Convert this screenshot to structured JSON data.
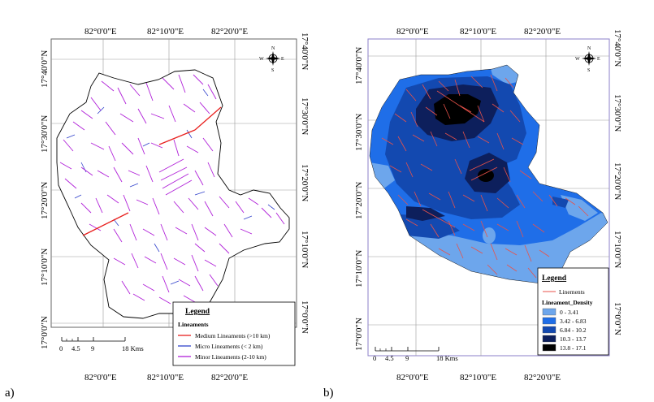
{
  "panels": {
    "a": {
      "letter": "a)",
      "top_lon_labels": [
        "82°0'0\"E",
        "82°10'0\"E",
        "82°20'0\"E"
      ],
      "bottom_lon_labels": [
        "82°0'0\"E",
        "82°10'0\"E",
        "82°20'0\"E"
      ],
      "left_lat_labels": [
        "17°40'0\"N",
        "17°30'0\"N",
        "17°20'0\"N",
        "17°10'0\"N",
        "17°0'0\"N"
      ],
      "right_lat_labels": [
        "17°40'0\"N",
        "17°30'0\"N",
        "17°20'0\"N",
        "17°10'0\"N",
        "17°0'0\"N"
      ],
      "scale": {
        "ticks": [
          "0",
          "4.5",
          "9",
          "18 Kms"
        ]
      },
      "legend": {
        "title": "Legend",
        "subtitle": "Lineaments",
        "items": [
          {
            "label": "Medium Lineaments (>10 km)",
            "color": "#e8201e"
          },
          {
            "label": "Micro Lineaments (< 2 km)",
            "color": "#3344cc"
          },
          {
            "label": "Minor Lineaments (2-10 km)",
            "color": "#b020d8"
          }
        ]
      }
    },
    "b": {
      "letter": "b)",
      "top_lon_labels": [
        "82°0'0\"E",
        "82°10'0\"E",
        "82°20'0\"E"
      ],
      "bottom_lon_labels": [
        "82°0'0\"E",
        "82°10'0\"E",
        "82°20'0\"E"
      ],
      "left_lat_labels": [
        "17°40'0\"N",
        "17°30'0\"N",
        "17°20'0\"N",
        "17°10'0\"N",
        "17°0'0\"N"
      ],
      "right_lat_labels": [
        "17°40'0\"N",
        "17°30'0\"N",
        "17°20'0\"N",
        "17°10'0\"N",
        "17°0'0\"N"
      ],
      "scale": {
        "ticks": [
          "0",
          "4.5",
          "9",
          "18 Kms"
        ]
      },
      "legend": {
        "title": "Legend",
        "line_item": {
          "label": "Linements",
          "color": "#e8524a"
        },
        "density_title": "Lineament_Density",
        "classes": [
          {
            "label": "0 - 3.41",
            "color": "#6da6ec"
          },
          {
            "label": "3.42 - 6.83",
            "color": "#1f6ee8"
          },
          {
            "label": "6.84 - 10.2",
            "color": "#1349b0"
          },
          {
            "label": "10.3 - 13.7",
            "color": "#0d1f5c"
          },
          {
            "label": "13.8 - 17.1",
            "color": "#000000"
          }
        ]
      }
    },
    "north_arrow": {
      "n": "N",
      "s": "S",
      "e": "E",
      "w": "W"
    }
  }
}
